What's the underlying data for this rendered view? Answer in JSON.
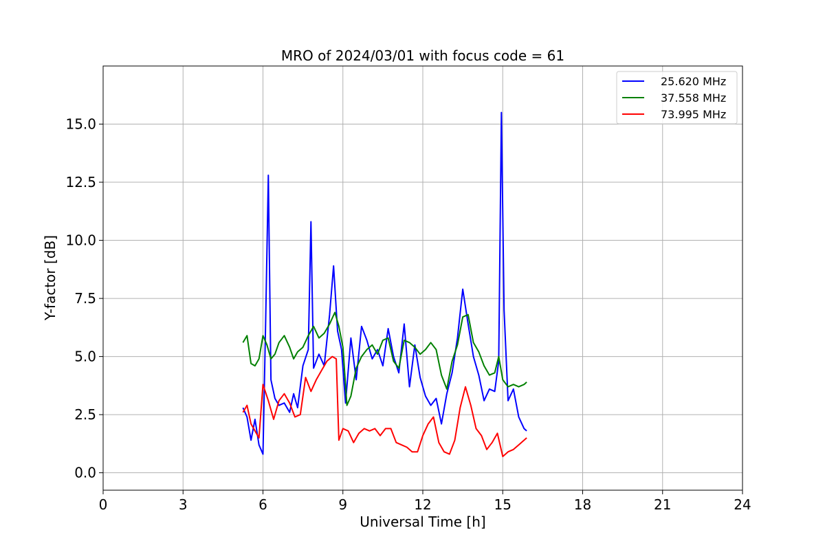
{
  "chart_data": {
    "type": "line",
    "title": "MRO of 2024/03/01 with focus code = 61",
    "xlabel": "Universal Time [h]",
    "ylabel": "Y-factor [dB]",
    "xlim": [
      0,
      24
    ],
    "ylim": [
      -0.75,
      17.5
    ],
    "xticks": [
      0,
      3,
      6,
      9,
      12,
      15,
      18,
      21,
      24
    ],
    "xtick_labels": [
      "0",
      "3",
      "6",
      "9",
      "12",
      "15",
      "18",
      "21",
      "24"
    ],
    "yticks": [
      0.0,
      2.5,
      5.0,
      7.5,
      10.0,
      12.5,
      15.0
    ],
    "ytick_labels": [
      "0.0",
      "2.5",
      "5.0",
      "7.5",
      "10.0",
      "12.5",
      "15.0"
    ],
    "grid": true,
    "legend_position": "top-right",
    "series": [
      {
        "name": "25.620 MHz",
        "color": "#0000ff",
        "x": [
          5.25,
          5.4,
          5.55,
          5.7,
          5.85,
          6.0,
          6.1,
          6.2,
          6.3,
          6.45,
          6.6,
          6.8,
          7.0,
          7.15,
          7.3,
          7.5,
          7.7,
          7.8,
          7.9,
          8.1,
          8.3,
          8.5,
          8.65,
          8.8,
          8.95,
          9.1,
          9.3,
          9.5,
          9.7,
          9.9,
          10.1,
          10.3,
          10.5,
          10.7,
          10.9,
          11.1,
          11.3,
          11.5,
          11.7,
          11.9,
          12.1,
          12.3,
          12.5,
          12.7,
          12.9,
          13.1,
          13.3,
          13.5,
          13.7,
          13.9,
          14.1,
          14.3,
          14.5,
          14.7,
          14.85,
          14.95,
          15.05,
          15.2,
          15.4,
          15.6,
          15.8,
          15.9
        ],
        "y": [
          2.8,
          2.4,
          1.4,
          2.3,
          1.2,
          0.8,
          6.5,
          12.8,
          4.0,
          3.2,
          2.9,
          3.0,
          2.6,
          3.4,
          2.8,
          4.6,
          5.3,
          10.8,
          4.5,
          5.1,
          4.6,
          6.8,
          8.9,
          6.1,
          5.3,
          3.0,
          5.8,
          4.0,
          6.3,
          5.7,
          4.9,
          5.3,
          4.6,
          6.2,
          5.0,
          4.3,
          6.4,
          3.7,
          5.5,
          4.1,
          3.3,
          2.9,
          3.2,
          2.1,
          3.4,
          4.3,
          5.8,
          7.9,
          6.4,
          5.0,
          4.2,
          3.1,
          3.6,
          3.5,
          4.8,
          15.5,
          7.0,
          3.1,
          3.6,
          2.4,
          1.9,
          1.8
        ]
      },
      {
        "name": "37.558 MHz",
        "color": "#008000",
        "x": [
          5.25,
          5.4,
          5.55,
          5.7,
          5.85,
          6.0,
          6.15,
          6.3,
          6.45,
          6.6,
          6.8,
          7.0,
          7.15,
          7.3,
          7.5,
          7.7,
          7.9,
          8.1,
          8.3,
          8.5,
          8.7,
          8.85,
          9.0,
          9.15,
          9.3,
          9.5,
          9.7,
          9.9,
          10.1,
          10.3,
          10.5,
          10.7,
          10.9,
          11.1,
          11.3,
          11.5,
          11.7,
          11.9,
          12.1,
          12.3,
          12.5,
          12.7,
          12.9,
          13.1,
          13.3,
          13.5,
          13.7,
          13.9,
          14.1,
          14.3,
          14.5,
          14.7,
          14.85,
          15.0,
          15.2,
          15.4,
          15.6,
          15.8,
          15.9
        ],
        "y": [
          5.6,
          5.9,
          4.7,
          4.6,
          4.9,
          5.9,
          5.5,
          4.9,
          5.1,
          5.6,
          5.9,
          5.4,
          4.9,
          5.2,
          5.4,
          5.9,
          6.3,
          5.8,
          6.0,
          6.4,
          6.9,
          6.3,
          5.4,
          2.9,
          3.3,
          4.5,
          5.0,
          5.3,
          5.5,
          5.1,
          5.7,
          5.8,
          4.8,
          4.5,
          5.7,
          5.6,
          5.4,
          5.1,
          5.3,
          5.6,
          5.3,
          4.2,
          3.6,
          4.8,
          5.5,
          6.7,
          6.8,
          5.6,
          5.2,
          4.6,
          4.2,
          4.3,
          5.0,
          4.0,
          3.7,
          3.8,
          3.7,
          3.8,
          3.9
        ]
      },
      {
        "name": "73.995 MHz",
        "color": "#ff0000",
        "x": [
          5.25,
          5.4,
          5.55,
          5.7,
          5.85,
          6.0,
          6.2,
          6.4,
          6.6,
          6.8,
          7.0,
          7.2,
          7.4,
          7.6,
          7.8,
          8.0,
          8.2,
          8.4,
          8.6,
          8.75,
          8.85,
          9.0,
          9.2,
          9.4,
          9.6,
          9.8,
          10.0,
          10.2,
          10.4,
          10.6,
          10.8,
          11.0,
          11.2,
          11.4,
          11.6,
          11.8,
          12.0,
          12.2,
          12.4,
          12.6,
          12.8,
          13.0,
          13.2,
          13.4,
          13.6,
          13.8,
          14.0,
          14.2,
          14.4,
          14.6,
          14.8,
          15.0,
          15.2,
          15.4,
          15.6,
          15.8,
          15.9
        ],
        "y": [
          2.6,
          2.9,
          2.1,
          1.8,
          1.5,
          3.8,
          3.1,
          2.3,
          3.1,
          3.4,
          3.0,
          2.4,
          2.5,
          4.1,
          3.5,
          4.0,
          4.4,
          4.8,
          5.0,
          4.9,
          1.4,
          1.9,
          1.8,
          1.3,
          1.7,
          1.9,
          1.8,
          1.9,
          1.6,
          1.9,
          1.9,
          1.3,
          1.2,
          1.1,
          0.9,
          0.9,
          1.6,
          2.1,
          2.4,
          1.3,
          0.9,
          0.8,
          1.4,
          2.8,
          3.7,
          2.9,
          1.9,
          1.6,
          1.0,
          1.3,
          1.7,
          0.7,
          0.9,
          1.0,
          1.2,
          1.4,
          1.5
        ]
      }
    ]
  }
}
